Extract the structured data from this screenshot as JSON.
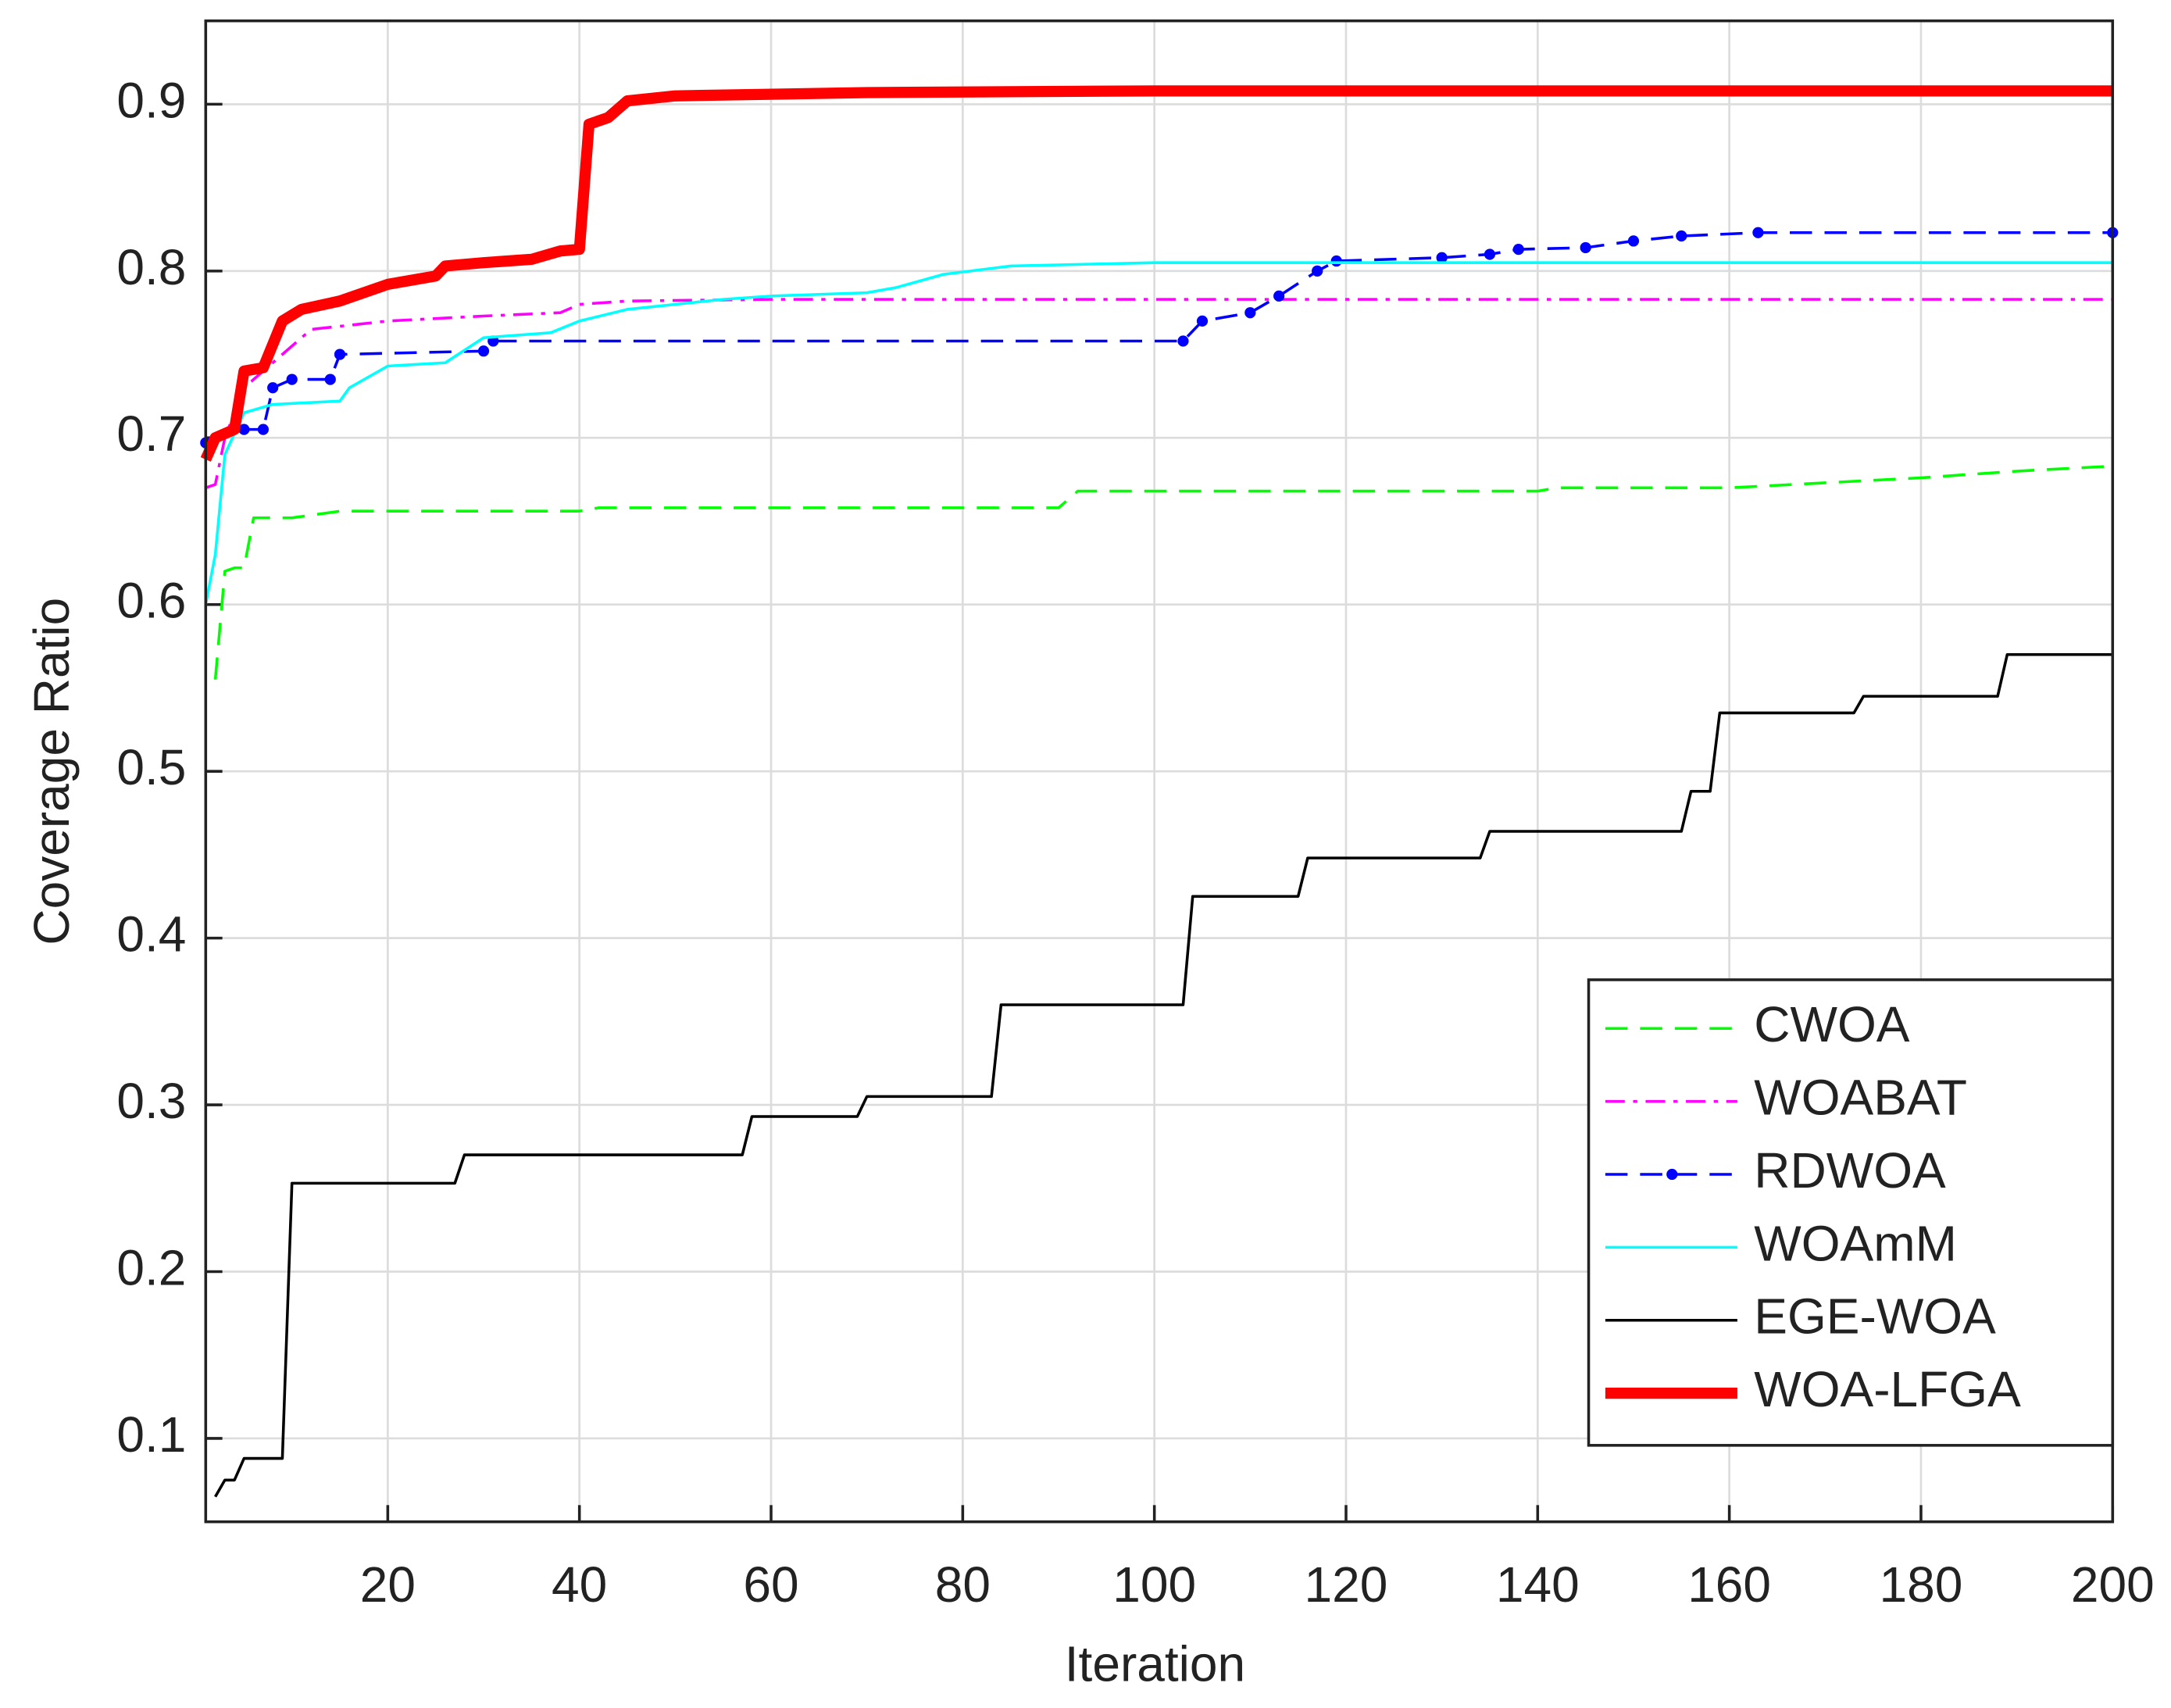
{
  "chart_data": {
    "type": "line",
    "xlabel": "Iteration",
    "ylabel": "Coverage Ratio",
    "xlim": [
      1,
      200
    ],
    "ylim": [
      0.05,
      0.95
    ],
    "xticks": [
      20,
      40,
      60,
      80,
      100,
      120,
      140,
      160,
      180,
      200
    ],
    "yticks": [
      0.1,
      0.2,
      0.3,
      0.4,
      0.5,
      0.6,
      0.7,
      0.8,
      0.9
    ],
    "grid": true,
    "legend": "lower right",
    "series": [
      {
        "name": "CWOA",
        "color": "#00ff00",
        "linestyle": "--",
        "linewidth": 2,
        "x": [
          2,
          3,
          4,
          5,
          6,
          10,
          15,
          40,
          42,
          90,
          92,
          140,
          142,
          160,
          170,
          180,
          190,
          200
        ],
        "values": [
          0.555,
          0.62,
          0.622,
          0.622,
          0.652,
          0.652,
          0.656,
          0.656,
          0.658,
          0.658,
          0.668,
          0.668,
          0.67,
          0.67,
          0.673,
          0.676,
          0.68,
          0.683
        ]
      },
      {
        "name": "WOABAT",
        "color": "#ff00ff",
        "linestyle": "-.",
        "linewidth": 2,
        "x": [
          1,
          2,
          3,
          5,
          8,
          10,
          12,
          20,
          30,
          38,
          40,
          45,
          60,
          200
        ],
        "values": [
          0.67,
          0.672,
          0.7,
          0.73,
          0.745,
          0.755,
          0.765,
          0.77,
          0.773,
          0.775,
          0.78,
          0.782,
          0.783,
          0.783
        ]
      },
      {
        "name": "RDWOA",
        "color": "#0000ff",
        "linestyle": "--",
        "linewidth": 2,
        "marker": "o",
        "x": [
          1,
          5,
          7,
          8,
          10,
          14,
          15,
          30,
          31,
          103,
          105,
          110,
          113,
          117,
          119,
          130,
          135,
          138,
          145,
          150,
          155,
          163,
          200
        ],
        "values": [
          0.697,
          0.705,
          0.705,
          0.73,
          0.735,
          0.735,
          0.75,
          0.752,
          0.758,
          0.758,
          0.77,
          0.775,
          0.785,
          0.8,
          0.806,
          0.808,
          0.81,
          0.813,
          0.814,
          0.818,
          0.821,
          0.823,
          0.823
        ]
      },
      {
        "name": "WOAmM",
        "color": "#00ffff",
        "linestyle": "-",
        "linewidth": 2,
        "x": [
          1,
          2,
          3,
          5,
          8,
          15,
          16,
          20,
          26,
          30,
          37,
          40,
          45,
          55,
          60,
          70,
          73,
          78,
          85,
          100,
          200
        ],
        "values": [
          0.6,
          0.63,
          0.69,
          0.715,
          0.72,
          0.722,
          0.73,
          0.743,
          0.745,
          0.76,
          0.763,
          0.77,
          0.777,
          0.783,
          0.785,
          0.787,
          0.79,
          0.798,
          0.803,
          0.805,
          0.805
        ]
      },
      {
        "name": "EGE-WOA",
        "color": "#000000",
        "linestyle": "-",
        "linewidth": 2,
        "x": [
          2,
          3,
          4,
          5,
          9,
          10,
          27,
          28,
          57,
          58,
          69,
          70,
          83,
          84,
          103,
          104,
          115,
          116,
          134,
          135,
          155,
          156,
          158,
          159,
          173,
          174,
          188,
          189,
          200
        ],
        "values": [
          0.065,
          0.075,
          0.075,
          0.088,
          0.088,
          0.253,
          0.253,
          0.27,
          0.27,
          0.293,
          0.293,
          0.305,
          0.305,
          0.36,
          0.36,
          0.425,
          0.425,
          0.448,
          0.448,
          0.464,
          0.464,
          0.488,
          0.488,
          0.535,
          0.535,
          0.545,
          0.545,
          0.57,
          0.57
        ]
      },
      {
        "name": "WOA-LFGA",
        "color": "#ff0000",
        "linestyle": "-",
        "linewidth": 8,
        "x": [
          1,
          2,
          4,
          5,
          7,
          9,
          11,
          15,
          20,
          25,
          26,
          30,
          35,
          38,
          40,
          41,
          43,
          45,
          50,
          70,
          100,
          200
        ],
        "values": [
          0.687,
          0.7,
          0.705,
          0.74,
          0.742,
          0.77,
          0.777,
          0.782,
          0.792,
          0.797,
          0.803,
          0.805,
          0.807,
          0.812,
          0.813,
          0.888,
          0.892,
          0.902,
          0.905,
          0.907,
          0.908,
          0.908
        ]
      }
    ]
  }
}
